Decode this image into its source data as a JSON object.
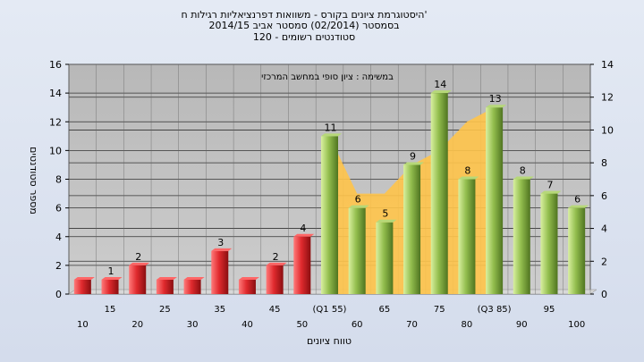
{
  "chart_data": {
    "type": "bar",
    "title": [
      "היסטוגרמת ציונים בקורס - משוואות דפרנציאליות רגילות ח'",
      "בסמסטר (02/2014) סמסטר אביב 2014/15",
      "סטודנטים רשומים - 120"
    ],
    "ylabel": "מספר סטודנטים",
    "xlabel": "טווח ציונים",
    "annotation": "במשימה : ציון סופי במחשב המרכזי",
    "ylim": [
      0,
      16
    ],
    "y2lim": [
      0,
      14
    ],
    "yticks": [
      0,
      2,
      4,
      6,
      8,
      10,
      12,
      14,
      16
    ],
    "y2ticks": [
      0,
      2,
      4,
      6,
      8,
      10,
      12,
      14
    ],
    "grid": true,
    "categories": [
      "10",
      "15",
      "20",
      "25",
      "30",
      "35",
      "40",
      "45",
      "50",
      "(Q1 55)",
      "60",
      "65",
      "70",
      "75",
      "80",
      "(Q3 85)",
      "90",
      "95",
      "100"
    ],
    "values": [
      1,
      1,
      2,
      1,
      1,
      3,
      1,
      2,
      4,
      11,
      6,
      5,
      9,
      14,
      8,
      13,
      8,
      7,
      6
    ],
    "data_labels": [
      "",
      "1",
      "2",
      "",
      "",
      "3",
      "",
      "2",
      "4",
      "11",
      "6",
      "5",
      "9",
      "14",
      "8",
      "13",
      "8",
      "7",
      "6"
    ],
    "area_series": {
      "x_start": "(Q1 55)",
      "x_end": "(Q3 85)",
      "values": [
        11,
        7,
        7,
        9,
        10,
        12,
        13
      ]
    },
    "colors": {
      "bar_low": "#d8282c",
      "bar_high": "#8fb84a",
      "area": "#ffc44a",
      "plot_bg": "#c0c0c0"
    }
  }
}
